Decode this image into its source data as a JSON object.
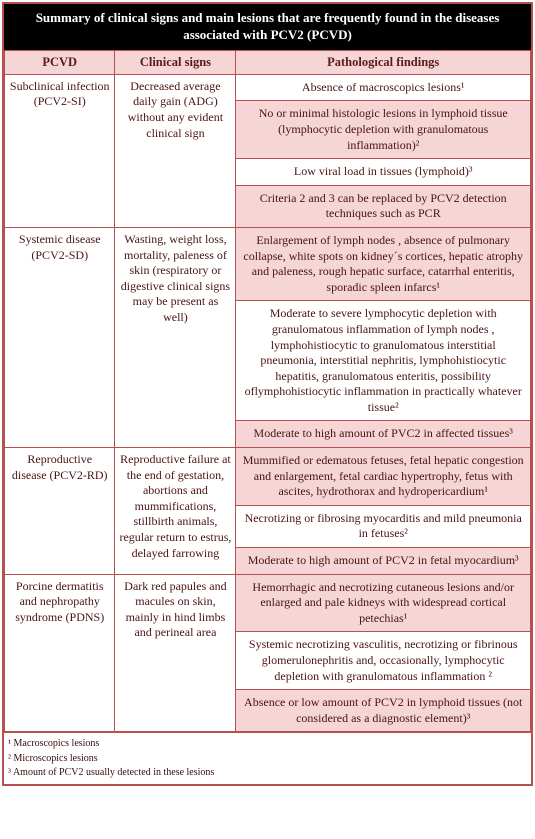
{
  "title": "Summary of clinical signs and main lesions that are frequently found in the diseases associated with PCV2 (PCVD)",
  "columns": [
    "PCVD",
    "Clinical signs",
    "Pathological findings"
  ],
  "col_widths": [
    "21%",
    "23%",
    "56%"
  ],
  "rows": [
    {
      "pcvd": "Subclinical infection (PCV2-SI)",
      "signs": "Decreased average daily gain (ADG) without any evident clinical sign",
      "findings": [
        {
          "text": "Absence of macroscopics lesions¹",
          "alt": false
        },
        {
          "text": "No or minimal histologic lesions in lymphoid tissue (lymphocytic depletion with granulomatous inflammation)²",
          "alt": true
        },
        {
          "text": "Low viral load in tissues (lymphoid)³",
          "alt": false
        },
        {
          "text": "Criteria 2 and 3 can be replaced by PCV2 detection techniques such as PCR",
          "alt": true
        }
      ]
    },
    {
      "pcvd": "Systemic disease (PCV2-SD)",
      "signs": "Wasting, weight loss, mortality, paleness of skin (respiratory or digestive clinical signs may be present as well)",
      "findings": [
        {
          "text": "Enlargement of lymph nodes , absence of pulmonary collapse, white spots on kidney´s cortices, hepatic atrophy and paleness, rough hepatic surface, catarrhal enteritis, sporadic spleen infarcs¹",
          "alt": true
        },
        {
          "text": "Moderate to severe lymphocytic depletion with granulomatous inflammation of lymph nodes , lymphohistiocytic to granulomatous interstitial pneumonia, interstitial nephritis, lymphohistiocytic hepatitis, granulomatous enteritis, possibility oflymphohistiocytic inflammation in practically whatever tissue²",
          "alt": false
        },
        {
          "text": "Moderate to high amount of PVC2 in affected tissues³",
          "alt": true
        }
      ]
    },
    {
      "pcvd": "Reproductive disease (PCV2-RD)",
      "signs": "Reproductive failure at the end of gestation, abortions and mummifications, stillbirth animals, regular return to estrus,  delayed farrowing",
      "findings": [
        {
          "text": "Mummified or edematous fetuses, fetal hepatic congestion and enlargement, fetal cardiac hypertrophy, fetus with ascites, hydrothorax and hydropericardium¹",
          "alt": true
        },
        {
          "text": "Necrotizing or fibrosing myocarditis  and mild pneumonia in fetuses²",
          "alt": false
        },
        {
          "text": "Moderate to high amount of PCV2 in fetal myocardium³",
          "alt": true
        }
      ]
    },
    {
      "pcvd": "Porcine dermatitis and nephropathy syndrome (PDNS)",
      "signs": "Dark red papules and macules on skin,\nmainly in hind limbs and perineal area",
      "findings": [
        {
          "text": "Hemorrhagic and necrotizing cutaneous lesions and/or enlarged and pale kidneys with widespread cortical petechias¹",
          "alt": true
        },
        {
          "text": "Systemic necrotizing vasculitis, necrotizing or fibrinous glomerulonephritis and, occasionally, lymphocytic depletion with granulomatous inflammation ²",
          "alt": false
        },
        {
          "text": "Absence or low amount of PCV2 in lymphoid tissues (not considered as a diagnostic element)³",
          "alt": true
        }
      ]
    }
  ],
  "footnotes": [
    "¹ Macroscopics lesions",
    "² Microscopics lesions",
    "³ Amount of PCV2  usually detected in these lesions"
  ],
  "colors": {
    "border": "#b85050",
    "header_bg": "#f5d5d5",
    "alt_bg": "#f5d5d5",
    "title_bg": "#000000",
    "title_fg": "#ffffff",
    "text": "#4a1212"
  }
}
